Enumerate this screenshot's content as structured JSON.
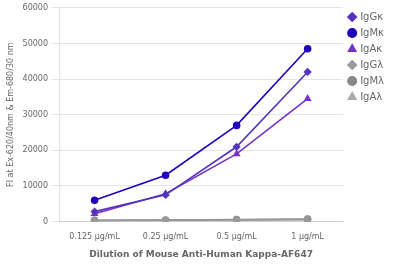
{
  "chart_data": {
    "type": "line",
    "categories": [
      "0.125 μg/mL",
      "0.25 μg/mL",
      "0.5 μg/mL",
      "1 μg/mL"
    ],
    "series": [
      {
        "name": "IgGκ",
        "color": "#5533bb",
        "marker": "diamond",
        "values": [
          2800,
          7500,
          21000,
          42000
        ]
      },
      {
        "name": "IgMκ",
        "color": "#2200bb",
        "marker": "circle",
        "values": [
          6000,
          13000,
          27000,
          48500
        ]
      },
      {
        "name": "IgAκ",
        "color": "#7733cc",
        "marker": "triangle",
        "values": [
          2200,
          7800,
          19000,
          34500
        ]
      },
      {
        "name": "IgGλ",
        "color": "#999999",
        "marker": "diamond",
        "values": [
          300,
          400,
          500,
          600
        ]
      },
      {
        "name": "IgMλ",
        "color": "#888888",
        "marker": "circle",
        "values": [
          350,
          450,
          600,
          700
        ]
      },
      {
        "name": "IgAλ",
        "color": "#aaaaaa",
        "marker": "triangle",
        "values": [
          200,
          300,
          400,
          550
        ]
      }
    ],
    "x_label": "Dilution of Mouse Anti-Human Kappa-AF647",
    "y_label": "FI at Ex-620/40nm & Em-680/30 nm",
    "ylim": [
      0,
      60000
    ],
    "yticks": [
      0,
      10000,
      20000,
      30000,
      40000,
      50000,
      60000
    ],
    "grid": true,
    "legend": "right"
  }
}
